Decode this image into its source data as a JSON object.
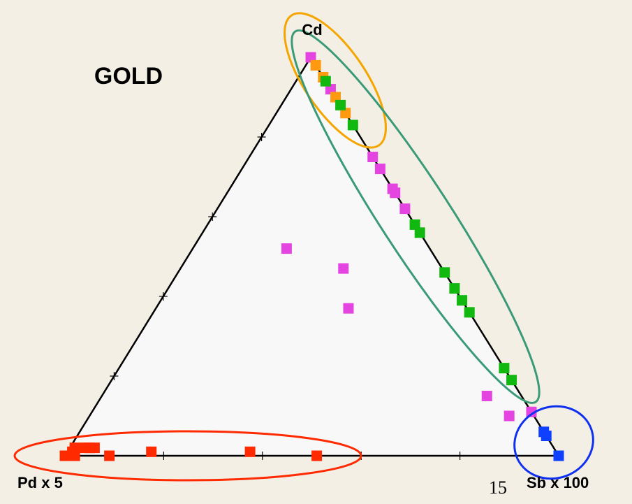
{
  "chart_data": {
    "type": "ternary",
    "title": "GOLD",
    "vertex_labels": {
      "top": "Cd",
      "left": "Pd x 5",
      "right": "Sb x 100"
    },
    "page_number": "15",
    "ticks": [
      20,
      40,
      60,
      80
    ],
    "series": [
      {
        "color": "#e444e0",
        "pd": [
          0,
          0,
          0,
          0,
          0,
          0,
          0,
          0,
          29,
          20,
          24,
          7,
          5,
          0
        ],
        "sb": [
          0,
          8,
          10,
          25,
          28,
          33,
          34,
          38,
          19,
          33,
          39,
          78,
          85,
          89
        ],
        "cd": [
          100,
          92,
          90,
          75,
          72,
          67,
          66,
          62,
          52,
          47,
          37,
          15,
          10,
          11
        ]
      },
      {
        "color": "#ff9a10",
        "pd": [
          0,
          0,
          0,
          0
        ],
        "sb": [
          2,
          5,
          10,
          14
        ],
        "cd": [
          98,
          95,
          90,
          86
        ]
      },
      {
        "color": "#10b810",
        "pd": [
          0,
          0,
          0,
          0,
          0,
          0,
          0,
          0,
          0,
          0,
          0
        ],
        "sb": [
          6,
          12,
          17,
          42,
          44,
          54,
          58,
          61,
          64,
          78,
          81
        ],
        "cd": [
          94,
          88,
          83,
          58,
          56,
          46,
          42,
          39,
          36,
          22,
          19
        ]
      },
      {
        "color": "#ff2a00",
        "pd": [
          100,
          98,
          98,
          97,
          95,
          94,
          94,
          93,
          91,
          82,
          62,
          49
        ],
        "sb": [
          0,
          1,
          2,
          1,
          3,
          4,
          4,
          5,
          9,
          17,
          37,
          51
        ],
        "cd": [
          0,
          1,
          0,
          2,
          2,
          2,
          2,
          2,
          0,
          1,
          1,
          0
        ]
      },
      {
        "color": "#1040ff",
        "pd": [
          0,
          0,
          0
        ],
        "sb": [
          94,
          95,
          100
        ],
        "cd": [
          6,
          5,
          0
        ]
      }
    ]
  }
}
